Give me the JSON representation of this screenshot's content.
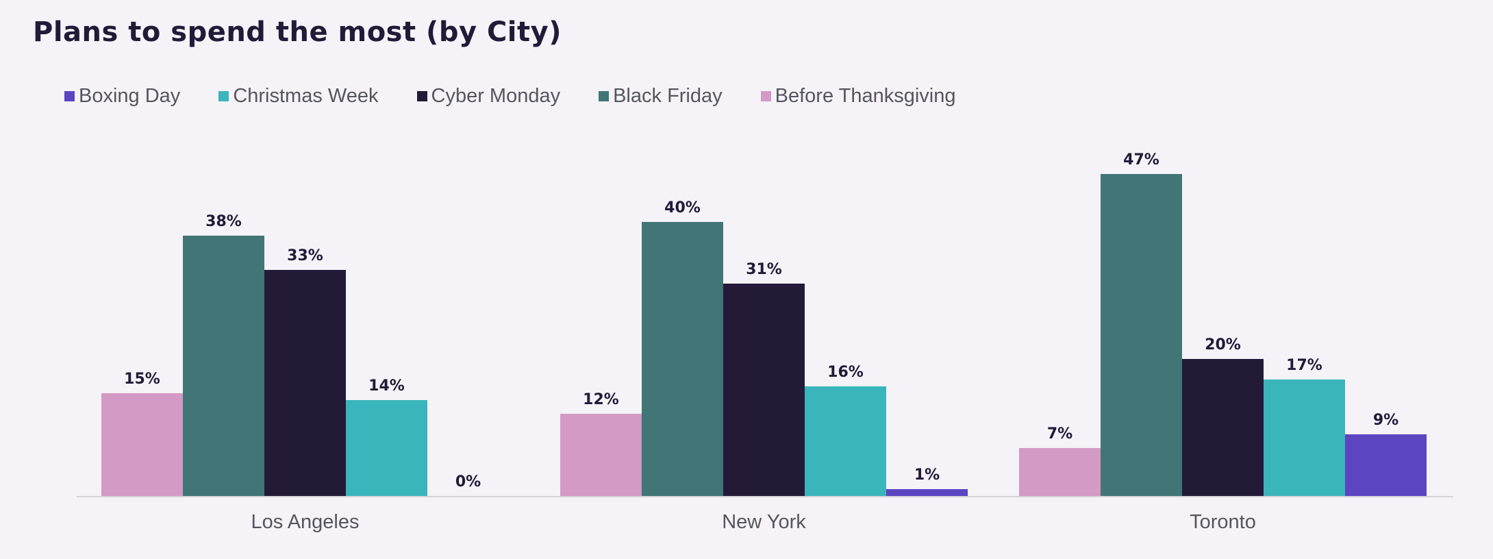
{
  "chart_data": {
    "type": "bar",
    "title": "Plans to spend the most  (by City)",
    "categories": [
      "Los Angeles",
      "New York",
      "Toronto"
    ],
    "series": [
      {
        "name": "Before Thanksgiving",
        "color": "#d39ac6",
        "values": [
          15,
          12,
          7
        ]
      },
      {
        "name": "Black Friday",
        "color": "#417576",
        "values": [
          38,
          40,
          47
        ]
      },
      {
        "name": "Cyber Monday",
        "color": "#231a38",
        "values": [
          33,
          31,
          20
        ]
      },
      {
        "name": "Christmas Week",
        "color": "#3ab5bb",
        "values": [
          14,
          16,
          17
        ]
      },
      {
        "name": "Boxing Day",
        "color": "#5b45c1",
        "values": [
          0,
          1,
          9
        ]
      }
    ],
    "legend_order": [
      "Boxing Day",
      "Christmas Week",
      "Cyber Monday",
      "Black Friday",
      "Before Thanksgiving"
    ],
    "value_suffix": "%",
    "ylim": [
      0,
      50
    ],
    "grid": false,
    "legend_position": "top-left",
    "xlabel": "",
    "ylabel": ""
  }
}
